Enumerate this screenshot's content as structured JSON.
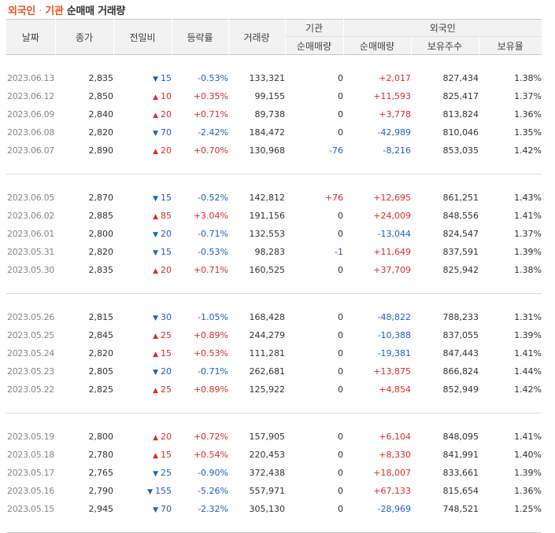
{
  "title": {
    "part1": "외국인",
    "sep": "·",
    "part2": "기관",
    "part3": "순매매 거래량"
  },
  "headers": {
    "date": "날짜",
    "close": "종가",
    "change": "전일비",
    "rate": "등락률",
    "volume": "거래량",
    "inst_group": "기관",
    "inst_net": "순매매량",
    "frn_group": "외국인",
    "frn_net": "순매매량",
    "frn_hold": "보유주수",
    "frn_rate": "보유율"
  },
  "colors": {
    "up": "#e12a2a",
    "down": "#1e5fd0",
    "accent": "#e8541e"
  },
  "rows": [
    {
      "date": "2023.06.13",
      "close": "2,835",
      "dir": "down",
      "diff": "15",
      "rate": "-0.53%",
      "volume": "133,321",
      "inst": "0",
      "frn": "+2,017",
      "hold": "827,434",
      "hrate": "1.38%"
    },
    {
      "date": "2023.06.12",
      "close": "2,850",
      "dir": "up",
      "diff": "10",
      "rate": "+0.35%",
      "volume": "99,155",
      "inst": "0",
      "frn": "+11,593",
      "hold": "825,417",
      "hrate": "1.37%"
    },
    {
      "date": "2023.06.09",
      "close": "2,840",
      "dir": "up",
      "diff": "20",
      "rate": "+0.71%",
      "volume": "89,738",
      "inst": "0",
      "frn": "+3,778",
      "hold": "813,824",
      "hrate": "1.36%"
    },
    {
      "date": "2023.06.08",
      "close": "2,820",
      "dir": "down",
      "diff": "70",
      "rate": "-2.42%",
      "volume": "184,472",
      "inst": "0",
      "frn": "-42,989",
      "hold": "810,046",
      "hrate": "1.35%"
    },
    {
      "date": "2023.06.07",
      "close": "2,890",
      "dir": "up",
      "diff": "20",
      "rate": "+0.70%",
      "volume": "130,968",
      "inst": "-76",
      "frn": "-8,216",
      "hold": "853,035",
      "hrate": "1.42%"
    },
    {
      "date": "2023.06.05",
      "close": "2,870",
      "dir": "down",
      "diff": "15",
      "rate": "-0.52%",
      "volume": "142,812",
      "inst": "+76",
      "frn": "+12,695",
      "hold": "861,251",
      "hrate": "1.43%"
    },
    {
      "date": "2023.06.02",
      "close": "2,885",
      "dir": "up",
      "diff": "85",
      "rate": "+3.04%",
      "volume": "191,156",
      "inst": "0",
      "frn": "+24,009",
      "hold": "848,556",
      "hrate": "1.41%"
    },
    {
      "date": "2023.06.01",
      "close": "2,800",
      "dir": "down",
      "diff": "20",
      "rate": "-0.71%",
      "volume": "132,553",
      "inst": "0",
      "frn": "-13,044",
      "hold": "824,547",
      "hrate": "1.37%"
    },
    {
      "date": "2023.05.31",
      "close": "2,820",
      "dir": "down",
      "diff": "15",
      "rate": "-0.53%",
      "volume": "98,283",
      "inst": "-1",
      "frn": "+11,649",
      "hold": "837,591",
      "hrate": "1.39%"
    },
    {
      "date": "2023.05.30",
      "close": "2,835",
      "dir": "up",
      "diff": "20",
      "rate": "+0.71%",
      "volume": "160,525",
      "inst": "0",
      "frn": "+37,709",
      "hold": "825,942",
      "hrate": "1.38%"
    },
    {
      "date": "2023.05.26",
      "close": "2,815",
      "dir": "down",
      "diff": "30",
      "rate": "-1.05%",
      "volume": "168,428",
      "inst": "0",
      "frn": "-48,822",
      "hold": "788,233",
      "hrate": "1.31%"
    },
    {
      "date": "2023.05.25",
      "close": "2,845",
      "dir": "up",
      "diff": "25",
      "rate": "+0.89%",
      "volume": "244,279",
      "inst": "0",
      "frn": "-10,388",
      "hold": "837,055",
      "hrate": "1.39%"
    },
    {
      "date": "2023.05.24",
      "close": "2,820",
      "dir": "up",
      "diff": "15",
      "rate": "+0.53%",
      "volume": "111,281",
      "inst": "0",
      "frn": "-19,381",
      "hold": "847,443",
      "hrate": "1.41%"
    },
    {
      "date": "2023.05.23",
      "close": "2,805",
      "dir": "down",
      "diff": "20",
      "rate": "-0.71%",
      "volume": "262,681",
      "inst": "0",
      "frn": "+13,875",
      "hold": "866,824",
      "hrate": "1.44%"
    },
    {
      "date": "2023.05.22",
      "close": "2,825",
      "dir": "up",
      "diff": "25",
      "rate": "+0.89%",
      "volume": "125,922",
      "inst": "0",
      "frn": "+4,854",
      "hold": "852,949",
      "hrate": "1.42%"
    },
    {
      "date": "2023.05.19",
      "close": "2,800",
      "dir": "up",
      "diff": "20",
      "rate": "+0.72%",
      "volume": "157,905",
      "inst": "0",
      "frn": "+6,104",
      "hold": "848,095",
      "hrate": "1.41%"
    },
    {
      "date": "2023.05.18",
      "close": "2,780",
      "dir": "up",
      "diff": "15",
      "rate": "+0.54%",
      "volume": "220,453",
      "inst": "0",
      "frn": "+8,330",
      "hold": "841,991",
      "hrate": "1.40%"
    },
    {
      "date": "2023.05.17",
      "close": "2,765",
      "dir": "down",
      "diff": "25",
      "rate": "-0.90%",
      "volume": "372,438",
      "inst": "0",
      "frn": "+18,007",
      "hold": "833,661",
      "hrate": "1.39%"
    },
    {
      "date": "2023.05.16",
      "close": "2,790",
      "dir": "down",
      "diff": "155",
      "rate": "-5.26%",
      "volume": "557,971",
      "inst": "0",
      "frn": "+67,133",
      "hold": "815,654",
      "hrate": "1.36%"
    },
    {
      "date": "2023.05.15",
      "close": "2,945",
      "dir": "down",
      "diff": "70",
      "rate": "-2.32%",
      "volume": "305,130",
      "inst": "0",
      "frn": "-28,969",
      "hold": "748,521",
      "hrate": "1.25%"
    }
  ]
}
